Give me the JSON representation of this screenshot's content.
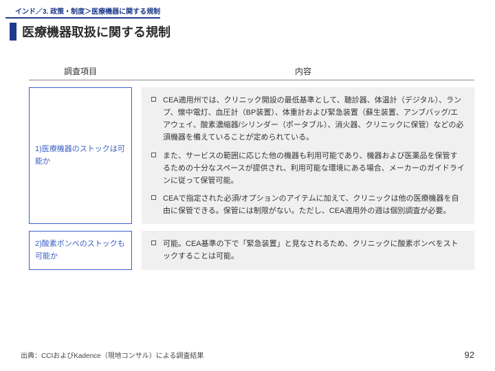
{
  "breadcrumb": "インド／3. 政策・制度＞医療機器に関する規制",
  "title": "医療機器取扱に関する規制",
  "headers": {
    "left": "調査項目",
    "right": "内容"
  },
  "rows": [
    {
      "label": "1)医療機器のストックは可能か",
      "items": [
        "CEA適用州では、クリニック開設の最低基準として、聴診器、体温計（デジタル）、ランプ、懐中電灯、血圧計（BP装置）、体重計および緊急装置（蘇生装置、アンブバッグ/エアウェイ、酸素濃縮器/シリンダー（ポータブル）、消火器、クリニックに保管）などの必須機器を備えていることが定められている。",
        "また、サービスの範囲に応じた他の機器も利用可能であり、機器および医薬品を保管するための十分なスペースが提供され、利用可能な環境にある場合、メーカーのガイドラインに従って保管可能。",
        "CEAで指定された必須/オプションのアイテムに加えて、クリニックは他の医療機器を自由に保管できる。保管には制限がない。ただし、CEA適用外の週は個別調査が必要。"
      ]
    },
    {
      "label": "2)酸素ボンベのストックも可能か",
      "items": [
        "可能。CEA基準の下で「緊急装置」と見なされるため、クリニックに酸素ボンベをストックすることは可能。"
      ]
    }
  ],
  "footer_source": "出典：CCIおよびKadence（現地コンサル）による調査結果",
  "page_number": "92"
}
